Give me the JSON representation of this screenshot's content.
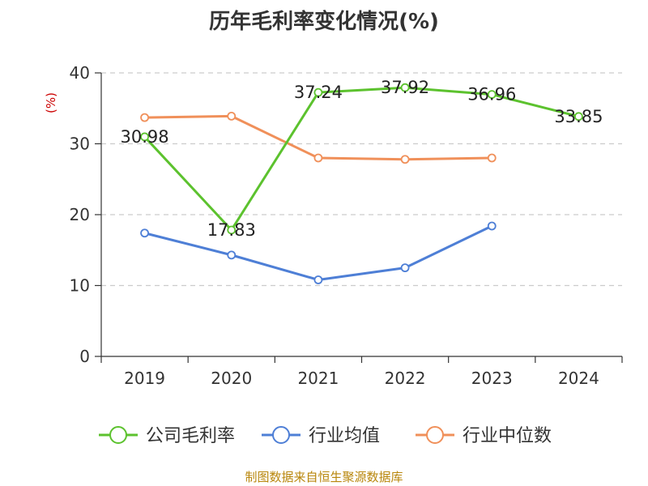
{
  "source_text": "制图数据来自恒生聚源数据库",
  "chart_data": {
    "type": "line",
    "title": "历年毛利率变化情况(%)",
    "ylabel": "(%)",
    "xlabel": "",
    "categories": [
      "2019",
      "2020",
      "2021",
      "2022",
      "2023",
      "2024"
    ],
    "ylim": [
      0,
      40
    ],
    "yticks": [
      0,
      10,
      20,
      30,
      40
    ],
    "grid": true,
    "legend_position": "bottom",
    "series": [
      {
        "name": "公司毛利率",
        "color": "#5cc22e",
        "values": [
          30.98,
          17.83,
          37.24,
          37.92,
          36.96,
          33.85
        ],
        "labels": [
          "30.98",
          "17.83",
          "37.24",
          "37.92",
          "36.96",
          "33.85"
        ]
      },
      {
        "name": "行业均值",
        "color": "#4e7fd6",
        "values": [
          17.4,
          14.3,
          10.8,
          12.5,
          18.4,
          null
        ]
      },
      {
        "name": "行业中位数",
        "color": "#f0905a",
        "values": [
          33.7,
          33.9,
          28.0,
          27.8,
          28.0,
          null
        ]
      }
    ]
  }
}
